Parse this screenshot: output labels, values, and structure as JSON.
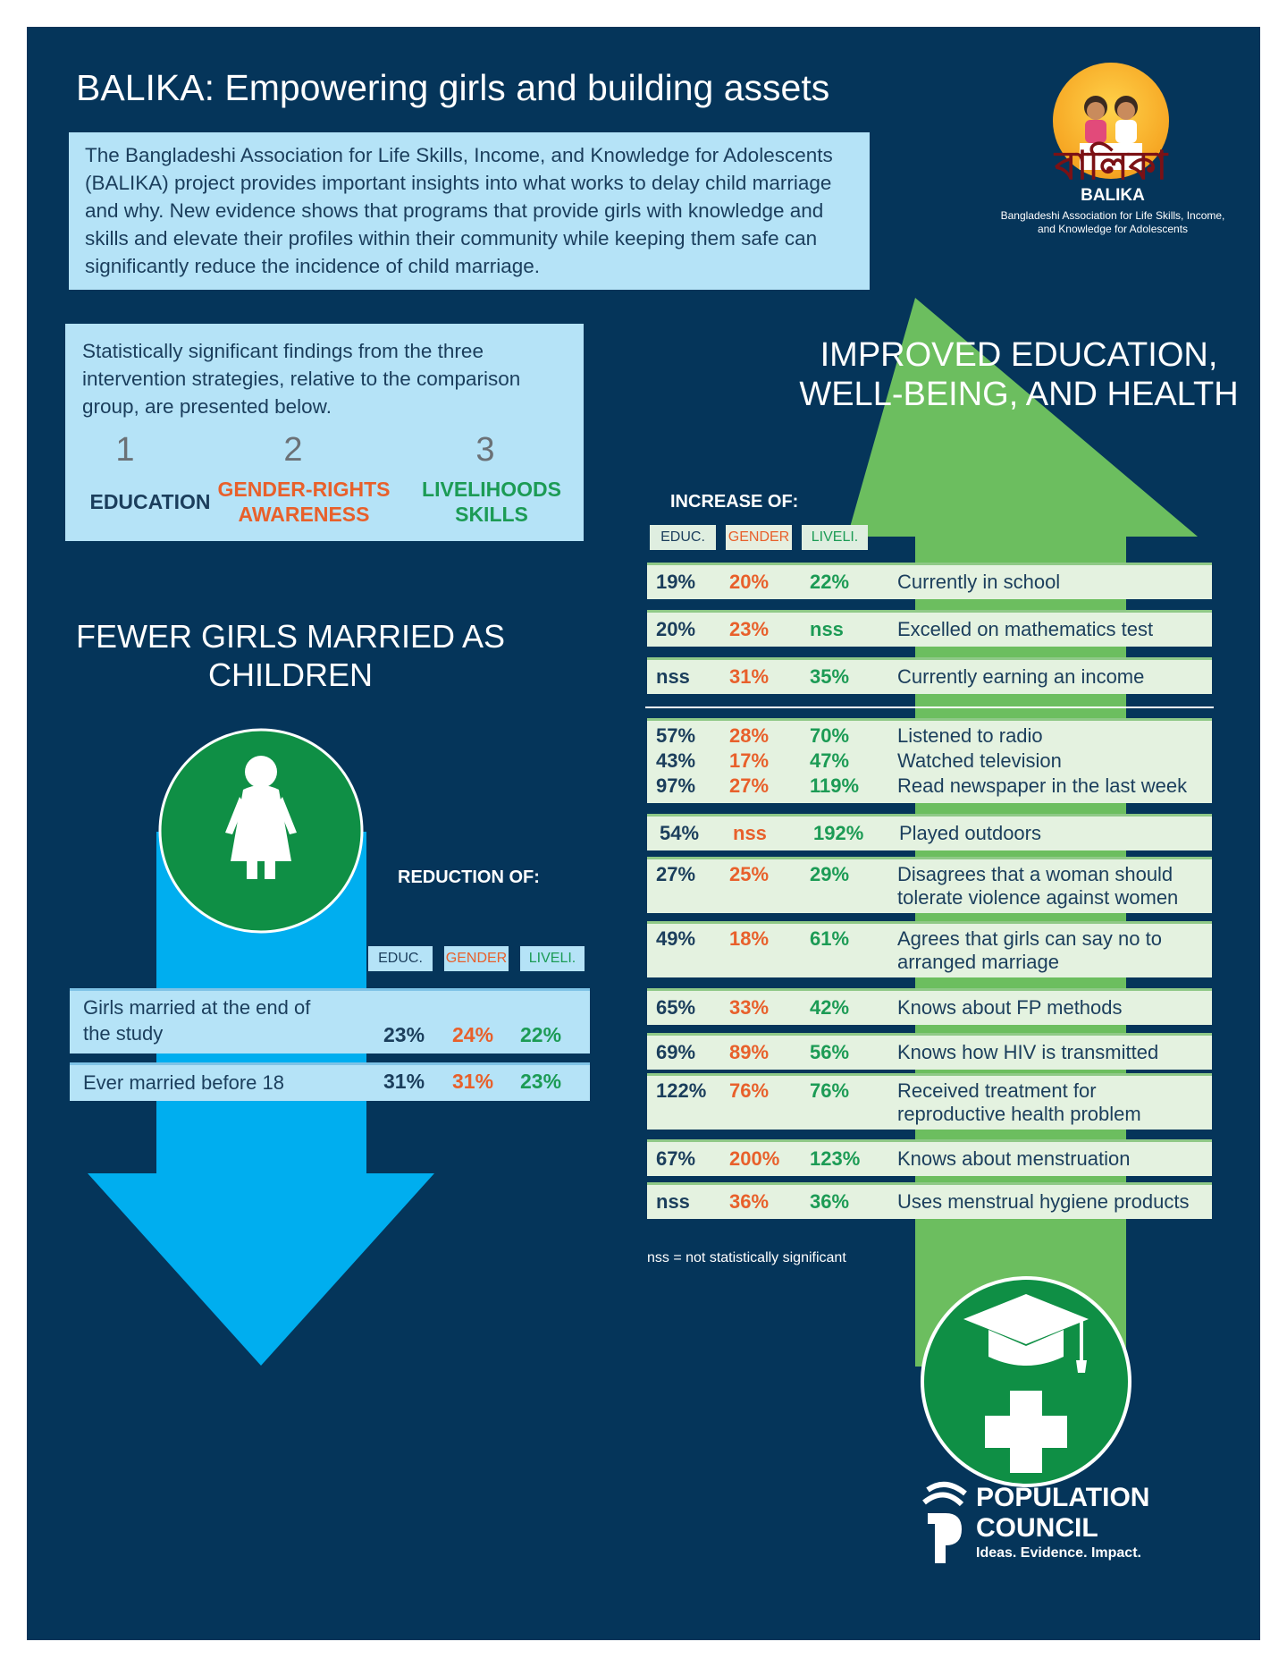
{
  "title": "BALIKA: Empowering girls and building assets",
  "intro": "The Bangladeshi Association for Life Skills, Income, and Knowledge for Adolescents (BALIKA) project provides important insights into what works to delay child marriage and why. New evidence shows that programs that provide girls with knowledge and skills and elevate their profiles within their community while keeping them safe can significantly reduce the incidence of child marriage.",
  "logo": {
    "script": "বালিকা",
    "name": "BALIKA",
    "subtitle": "Bangladeshi Association for Life Skills, Income, and Knowledge for Adolescents"
  },
  "strategies": {
    "intro": "Statistically significant findings from the three intervention strategies, relative to the comparison group, are presented below.",
    "items": [
      {
        "number": "1",
        "label": "EDUCATION",
        "color": "#1b3e5c"
      },
      {
        "number": "2",
        "label": "GENDER-RIGHTS AWARENESS",
        "color": "#e8602b"
      },
      {
        "number": "3",
        "label": "LIVELIHOODS SKILLS",
        "color": "#1c9b55"
      }
    ]
  },
  "left": {
    "heading": "FEWER GIRLS MARRIED AS CHILDREN",
    "reduction_label": "REDUCTION OF:",
    "columns": [
      "EDUC.",
      "GENDER",
      "LIVELI."
    ],
    "rows": [
      {
        "label": "Girls married at the end of the study",
        "educ": "23%",
        "gender": "24%",
        "liveli": "22%"
      },
      {
        "label": "Ever married before 18",
        "educ": "31%",
        "gender": "31%",
        "liveli": "23%"
      }
    ]
  },
  "right": {
    "heading": "IMPROVED EDUCATION, WELL-BEING, AND HEALTH",
    "increase_label": "INCREASE OF:",
    "columns": [
      "EDUC.",
      "GENDER",
      "LIVELI."
    ],
    "rows": [
      {
        "label": "Currently in school",
        "educ": "19%",
        "gender": "20%",
        "liveli": "22%"
      },
      {
        "label": "Excelled on mathematics test",
        "educ": "20%",
        "gender": "23%",
        "liveli": "nss"
      },
      {
        "label": "Currently earning an income",
        "educ": "nss",
        "gender": "31%",
        "liveli": "35%"
      },
      {
        "label": "Listened to radio",
        "educ": "57%",
        "gender": "28%",
        "liveli": "70%"
      },
      {
        "label": "Watched television",
        "educ": "43%",
        "gender": "17%",
        "liveli": "47%"
      },
      {
        "label": "Read newspaper in the last week",
        "educ": "97%",
        "gender": "27%",
        "liveli": "119%"
      },
      {
        "label": "Played outdoors",
        "educ": "54%",
        "gender": "nss",
        "liveli": "192%"
      },
      {
        "label": "Disagrees that a woman should tolerate violence against women",
        "educ": "27%",
        "gender": "25%",
        "liveli": "29%"
      },
      {
        "label": "Agrees that girls can say no to arranged marriage",
        "educ": "49%",
        "gender": "18%",
        "liveli": "61%"
      },
      {
        "label": "Knows about FP methods",
        "educ": "65%",
        "gender": "33%",
        "liveli": "42%"
      },
      {
        "label": "Knows how HIV is transmitted",
        "educ": "69%",
        "gender": "89%",
        "liveli": "56%"
      },
      {
        "label": "Received treatment for reproductive health problem",
        "educ": "122%",
        "gender": "76%",
        "liveli": "76%"
      },
      {
        "label": "Knows about menstruation",
        "educ": "67%",
        "gender": "200%",
        "liveli": "123%"
      },
      {
        "label": "Uses menstrual hygiene products",
        "educ": "nss",
        "gender": "36%",
        "liveli": "36%"
      }
    ],
    "note": "nss = not statistically significant"
  },
  "footer": {
    "org_line1": "POPULATION",
    "org_line2": "COUNCIL",
    "tagline": "Ideas. Evidence. Impact."
  },
  "colors": {
    "background": "#05355a",
    "light_blue": "#b5e3f7",
    "light_green": "#e4f2e0",
    "education": "#1b3e5c",
    "gender": "#e8602b",
    "livelihoods": "#1c9b55",
    "down_arrow": "#00aeef",
    "up_arrow": "#6cbe5f",
    "icon_circle": "#0f8f45"
  },
  "icons": [
    "girl-icon",
    "graduation-cap-icon",
    "medical-cross-icon",
    "population-council-logo-icon"
  ]
}
